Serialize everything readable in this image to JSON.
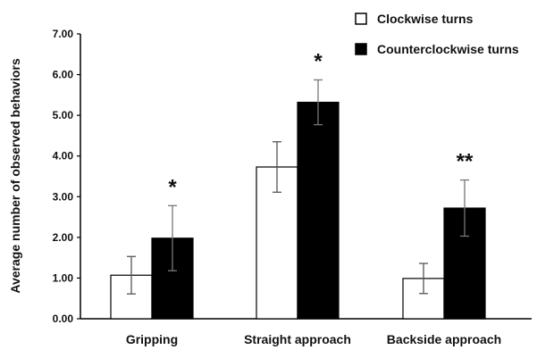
{
  "chart_data": {
    "type": "bar",
    "title": "",
    "xlabel": "",
    "ylabel": "Average number of observed behaviors",
    "ylim": [
      0,
      7
    ],
    "yticks": [
      "0.00",
      "1.00",
      "2.00",
      "3.00",
      "4.00",
      "5.00",
      "6.00",
      "7.00"
    ],
    "categories": [
      "Gripping",
      "Straight approach",
      "Backside approach"
    ],
    "series": [
      {
        "name": "Clockwise turns",
        "color": "#ffffff",
        "values": [
          1.07,
          3.73,
          0.99
        ],
        "errors": [
          0.46,
          0.62,
          0.37
        ]
      },
      {
        "name": "Counterclockwise turns",
        "color": "#000000",
        "values": [
          1.98,
          5.32,
          2.72
        ],
        "errors": [
          0.8,
          0.55,
          0.69
        ]
      }
    ],
    "annotations": [
      "*",
      "*",
      "**"
    ],
    "legend_position": "top-right",
    "grid": false
  }
}
